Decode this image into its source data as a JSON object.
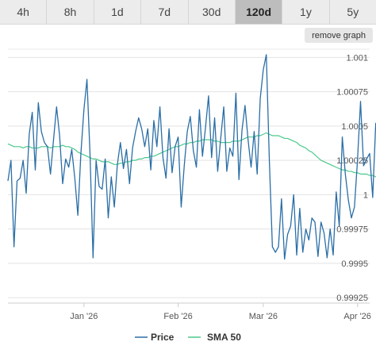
{
  "range_tabs": [
    {
      "label": "4h",
      "active": false
    },
    {
      "label": "8h",
      "active": false
    },
    {
      "label": "1d",
      "active": false
    },
    {
      "label": "7d",
      "active": false
    },
    {
      "label": "30d",
      "active": false
    },
    {
      "label": "120d",
      "active": true
    },
    {
      "label": "1y",
      "active": false
    },
    {
      "label": "5y",
      "active": false
    }
  ],
  "remove_graph_label": "remove graph",
  "chart_data": {
    "type": "line",
    "xlabel": "",
    "ylabel": "",
    "ylim": [
      0.99921,
      1.00106
    ],
    "grid": true,
    "legend_position": "bottom",
    "y_ticks": [
      {
        "value": 0.99925,
        "label": "0.99925"
      },
      {
        "value": 0.9995,
        "label": "0.9995"
      },
      {
        "value": 0.99975,
        "label": "0.99975"
      },
      {
        "value": 1.0,
        "label": "1"
      },
      {
        "value": 1.00025,
        "label": "1.00025"
      },
      {
        "value": 1.0005,
        "label": "1.0005"
      },
      {
        "value": 1.00075,
        "label": "1.00075"
      },
      {
        "value": 1.001,
        "label": "1.001"
      }
    ],
    "x_ticks": [
      {
        "x": 25,
        "label": "Jan '26"
      },
      {
        "x": 56,
        "label": "Feb '26"
      },
      {
        "x": 84,
        "label": "Mar '26"
      },
      {
        "x": 115,
        "label": "Apr '26"
      }
    ],
    "xlim": [
      0,
      119
    ],
    "series": [
      {
        "name": "Price",
        "color": "#2a6ea6",
        "values": [
          1.0001,
          1.00025,
          0.99962,
          1.0001,
          1.00012,
          1.00025,
          1.00001,
          1.00044,
          1.0006,
          1.00018,
          1.00067,
          1.00046,
          1.00038,
          1.00035,
          1.00015,
          1.0004,
          1.00064,
          1.00043,
          1.00008,
          1.00026,
          1.0002,
          1.00033,
          1.00012,
          0.99985,
          1.0003,
          1.00062,
          1.00084,
          1.0003,
          0.99954,
          1.00025,
          1.00006,
          1.00004,
          1.00026,
          0.99983,
          1.00013,
          0.99991,
          1.00022,
          1.00038,
          1.00019,
          1.00033,
          1.00008,
          1.00034,
          1.00046,
          1.00056,
          1.00048,
          1.00035,
          1.00048,
          1.00018,
          1.00054,
          1.00035,
          1.00064,
          1.00027,
          1.00012,
          1.00048,
          1.00016,
          1.00035,
          1.00042,
          0.99991,
          1.00021,
          1.00046,
          1.00057,
          1.00032,
          1.0002,
          1.00062,
          1.00028,
          1.00049,
          1.00072,
          1.00027,
          1.00056,
          1.00017,
          1.00041,
          1.00064,
          1.00017,
          1.00034,
          1.00028,
          1.00074,
          1.00011,
          1.00047,
          1.00065,
          1.0004,
          1.0002,
          1.00046,
          1.00015,
          1.0007,
          1.00091,
          1.00102,
          1.00025,
          0.99962,
          0.99958,
          0.99962,
          0.99997,
          0.99953,
          0.99971,
          0.99977,
          1.0,
          0.99956,
          0.9999,
          0.99958,
          0.99975,
          0.99967,
          0.99983,
          0.9998,
          0.99955,
          0.9998,
          0.99972,
          0.99954,
          0.99975,
          0.99956,
          1.00002,
          0.99977,
          1.00042,
          1.00015,
          0.99996,
          0.99983,
          0.99991,
          1.00025,
          1.00068,
          1.00021,
          1.00026,
          1.0003,
          0.99998,
          1.00052,
          1.0005,
          1.00044,
          1.0003,
          1.00027,
          1.0002,
          1.0003
        ]
      },
      {
        "name": "SMA 50",
        "color": "#4cc98c",
        "values": [
          1.00037,
          1.00036,
          1.00035,
          1.00035,
          1.00035,
          1.00034,
          1.00035,
          1.00035,
          1.00034,
          1.00034,
          1.00034,
          1.00035,
          1.00035,
          1.00035,
          1.00034,
          1.00035,
          1.00035,
          1.00035,
          1.00036,
          1.00035,
          1.00035,
          1.00034,
          1.00033,
          1.00031,
          1.0003,
          1.00029,
          1.00028,
          1.00027,
          1.00026,
          1.00026,
          1.00025,
          1.00024,
          1.00024,
          1.00024,
          1.00023,
          1.00022,
          1.00022,
          1.00023,
          1.00023,
          1.00024,
          1.00024,
          1.00025,
          1.00025,
          1.00026,
          1.00026,
          1.00027,
          1.00027,
          1.00028,
          1.00028,
          1.00029,
          1.0003,
          1.00031,
          1.00032,
          1.00033,
          1.00034,
          1.00035,
          1.00035,
          1.00036,
          1.00037,
          1.00037,
          1.00038,
          1.00038,
          1.00039,
          1.00039,
          1.0004,
          1.0004,
          1.0004,
          1.0004,
          1.00039,
          1.00039,
          1.00038,
          1.00038,
          1.00038,
          1.00038,
          1.00039,
          1.00039,
          1.00039,
          1.0004,
          1.00041,
          1.00042,
          1.00042,
          1.00042,
          1.00043,
          1.00043,
          1.00044,
          1.00045,
          1.00044,
          1.00043,
          1.00043,
          1.00043,
          1.00042,
          1.00041,
          1.00041,
          1.0004,
          1.00039,
          1.00038,
          1.00036,
          1.00035,
          1.00034,
          1.00032,
          1.00031,
          1.00029,
          1.00027,
          1.00025,
          1.00024,
          1.00023,
          1.00022,
          1.00021,
          1.0002,
          1.00019,
          1.00018,
          1.00018,
          1.00017,
          1.00017,
          1.00016,
          1.00016,
          1.00015,
          1.00015,
          1.00015,
          1.00014,
          1.00014,
          1.00013,
          1.00013,
          1.00012,
          1.00011,
          1.00011,
          1.0001,
          1.0001
        ]
      }
    ]
  }
}
